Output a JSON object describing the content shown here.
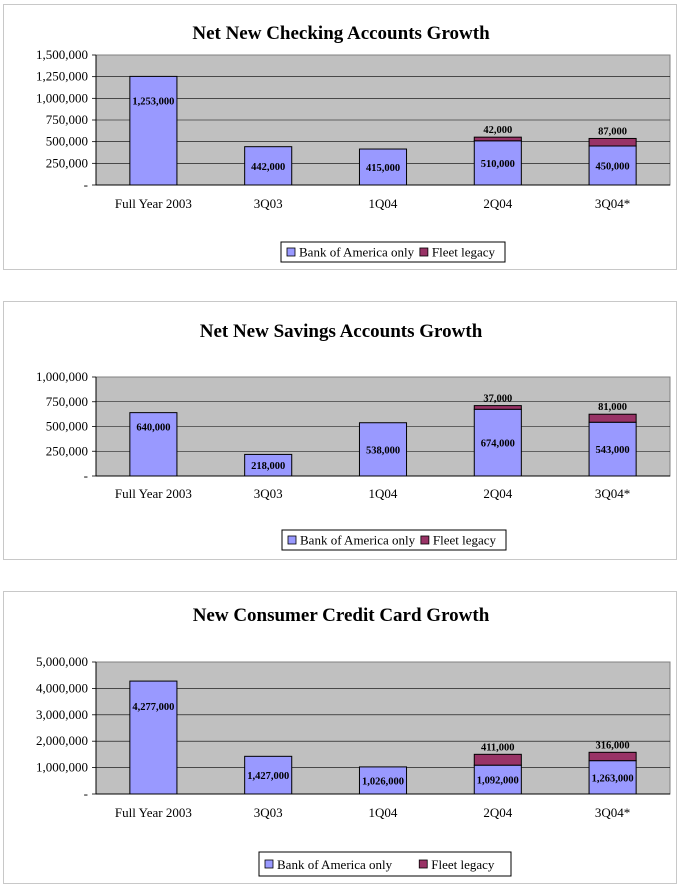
{
  "colors": {
    "plot_bg": "#c0c0c0",
    "boa": "#9999ff",
    "fleet": "#993366",
    "border": "#000000"
  },
  "legend": {
    "boa": "Bank of America only",
    "fleet": "Fleet legacy"
  },
  "chart_data": [
    {
      "type": "bar",
      "stacked": true,
      "title": "Net New Checking Accounts Growth",
      "categories": [
        "Full Year 2003",
        "3Q03",
        "1Q04",
        "2Q04",
        "3Q04*"
      ],
      "series": [
        {
          "name": "Bank of America only",
          "values": [
            1253000,
            442000,
            415000,
            510000,
            450000
          ]
        },
        {
          "name": "Fleet legacy",
          "values": [
            0,
            0,
            0,
            42000,
            87000
          ]
        }
      ],
      "labels_boa": [
        "1,253,000",
        "442,000",
        "415,000",
        "510,000",
        "450,000"
      ],
      "labels_fleet": [
        "",
        "",
        "",
        "42,000",
        "87,000"
      ],
      "ylim": [
        0,
        1500000
      ],
      "yticks": [
        "-",
        "250,000",
        "500,000",
        "750,000",
        "1,000,000",
        "1,250,000",
        "1,500,000"
      ],
      "legend_position": "bottom"
    },
    {
      "type": "bar",
      "stacked": true,
      "title": "Net New Savings Accounts Growth",
      "categories": [
        "Full Year 2003",
        "3Q03",
        "1Q04",
        "2Q04",
        "3Q04*"
      ],
      "series": [
        {
          "name": "Bank of America only",
          "values": [
            640000,
            218000,
            538000,
            674000,
            543000
          ]
        },
        {
          "name": "Fleet legacy",
          "values": [
            0,
            0,
            0,
            37000,
            81000
          ]
        }
      ],
      "labels_boa": [
        "640,000",
        "218,000",
        "538,000",
        "674,000",
        "543,000"
      ],
      "labels_fleet": [
        "",
        "",
        "",
        "37,000",
        "81,000"
      ],
      "ylim": [
        0,
        1000000
      ],
      "yticks": [
        "-",
        "250,000",
        "500,000",
        "750,000",
        "1,000,000"
      ],
      "legend_position": "bottom"
    },
    {
      "type": "bar",
      "stacked": true,
      "title": "New Consumer Credit Card Growth",
      "categories": [
        "Full Year 2003",
        "3Q03",
        "1Q04",
        "2Q04",
        "3Q04*"
      ],
      "series": [
        {
          "name": "Bank of America only",
          "values": [
            4277000,
            1427000,
            1026000,
            1092000,
            1263000
          ]
        },
        {
          "name": "Fleet legacy",
          "values": [
            0,
            0,
            0,
            411000,
            316000
          ]
        }
      ],
      "labels_boa": [
        "4,277,000",
        "1,427,000",
        "1,026,000",
        "1,092,000",
        "1,263,000"
      ],
      "labels_fleet": [
        "",
        "",
        "",
        "411,000",
        "316,000"
      ],
      "ylim": [
        0,
        5000000
      ],
      "yticks": [
        "-",
        "1,000,000",
        "2,000,000",
        "3,000,000",
        "4,000,000",
        "5,000,000"
      ],
      "legend_position": "bottom"
    }
  ]
}
